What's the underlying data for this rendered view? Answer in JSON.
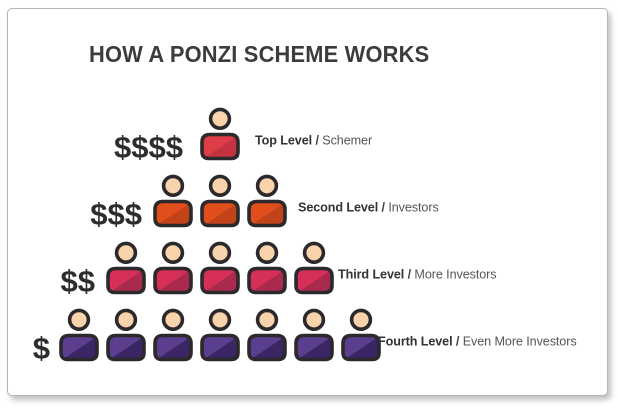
{
  "title": "HOW A PONZI SCHEME WORKS",
  "colors": {
    "outline": "#2b292b",
    "skin": "#f9d3ac",
    "dollar_text": "#2d2d2d",
    "title_text": "#3c3c3c",
    "card_border": "#b5b5b5"
  },
  "icons": {
    "person": "person-icon"
  },
  "levels": [
    {
      "dollars": "$$$$",
      "count": 1,
      "level_label": "Top Level",
      "separator": "/",
      "description": "Schemer",
      "body_main": "#de3d48",
      "body_shade": "#c23240"
    },
    {
      "dollars": "$$$",
      "count": 3,
      "level_label": "Second Level",
      "separator": "/",
      "description": "Investors",
      "body_main": "#df4e1b",
      "body_shade": "#c2431a"
    },
    {
      "dollars": "$$",
      "count": 5,
      "level_label": "Third Level",
      "separator": "/",
      "description": "More Investors",
      "body_main": "#d63059",
      "body_shade": "#aa2a4d"
    },
    {
      "dollars": "$",
      "count": 7,
      "level_label": "Fourth Level",
      "separator": "/",
      "description": "Even More Investors",
      "body_main": "#5b3e8e",
      "body_shade": "#3a2664"
    }
  ]
}
